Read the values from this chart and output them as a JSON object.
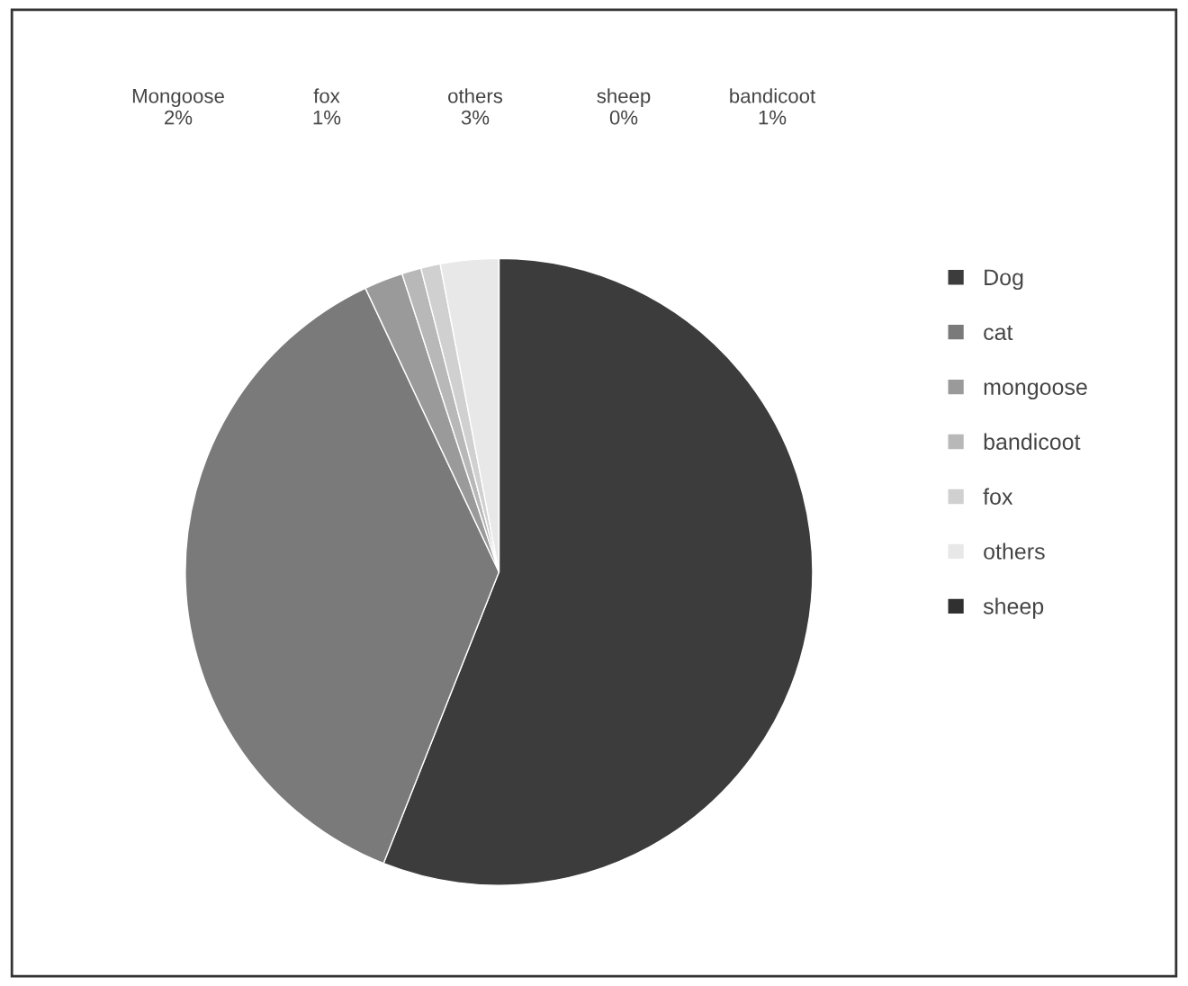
{
  "chart_data": {
    "type": "pie",
    "categories": [
      "Dog",
      "cat",
      "mongoose",
      "bandicoot",
      "fox",
      "others",
      "sheep"
    ],
    "values": [
      56,
      37,
      2,
      1,
      1,
      3,
      0
    ],
    "colors": [
      "#3c3c3c",
      "#7a7a7a",
      "#9a9a9a",
      "#b8b8b8",
      "#d0d0d0",
      "#e8e8e8",
      "#303030"
    ],
    "annotations": [
      "Mongoose\n2%",
      "fox\n1%",
      "others\n3%",
      "sheep\n0%",
      "bandicoot\n1%"
    ],
    "legend": "right"
  }
}
